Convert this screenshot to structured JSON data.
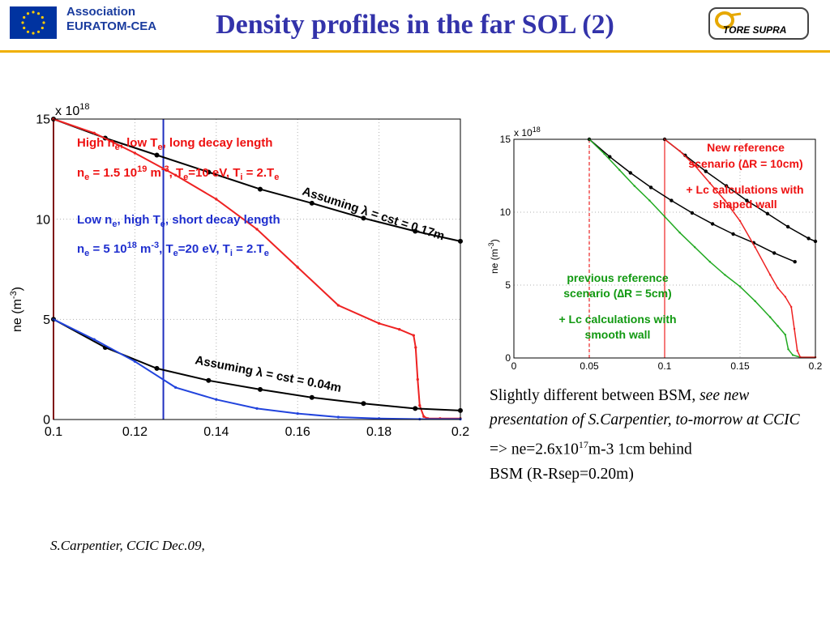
{
  "header": {
    "org_line1": "Association",
    "org_line2": "EURATOM-CEA",
    "title": "Density profiles in the far SOL (2)",
    "logo_text": "TORE SUPRA",
    "logo_colors": {
      "accent": "#f0b000",
      "eu_blue": "#0033a0",
      "eu_star": "#ffcc00"
    },
    "logo_icon": "eu-flag-icon"
  },
  "chart_data": [
    {
      "type": "line",
      "xlim": [
        0.1,
        0.2
      ],
      "ylim": [
        0,
        15
      ],
      "y_multiplier": "x 10",
      "y_multiplier_exp": "18",
      "ylabel": "ne (m",
      "ylabel_exp": "-3",
      "ylabel_close": ")",
      "xticks": [
        "0.1",
        "0.12",
        "0.14",
        "0.16",
        "0.18",
        "0.2"
      ],
      "yticks": [
        "0",
        "5",
        "10",
        "15"
      ],
      "grid": true,
      "vertical_lines": [
        {
          "x": 0.1,
          "color": "#ff2222"
        },
        {
          "x": 0.127,
          "color": "#1f2fbf"
        }
      ],
      "series": [
        {
          "color": "#000000",
          "x": [
            0.1,
            0.1127,
            0.1254,
            0.1381,
            0.1508,
            0.1635,
            0.1762,
            0.1889,
            0.2
          ],
          "y": [
            15,
            14.05,
            13.2,
            12.35,
            11.5,
            10.8,
            10.05,
            9.4,
            8.9
          ]
        },
        {
          "color": "#ee2222",
          "x": [
            0.1,
            0.11,
            0.12,
            0.13,
            0.14,
            0.15,
            0.16,
            0.17,
            0.18,
            0.185,
            0.1885,
            0.189,
            0.1895,
            0.19,
            0.191,
            0.192,
            0.195,
            0.2
          ],
          "y": [
            15,
            14.3,
            13.3,
            12.2,
            11,
            9.5,
            7.6,
            5.7,
            4.8,
            4.5,
            4.2,
            3.6,
            2,
            0.7,
            0.15,
            0.05,
            0.05,
            0.05
          ]
        },
        {
          "color": "#000000",
          "x": [
            0.1,
            0.1127,
            0.1254,
            0.1381,
            0.1508,
            0.1635,
            0.1762,
            0.1889,
            0.2
          ],
          "y": [
            5,
            3.6,
            2.55,
            1.95,
            1.5,
            1.1,
            0.8,
            0.55,
            0.45
          ]
        },
        {
          "color": "#2244dd",
          "x": [
            0.1,
            0.11,
            0.12,
            0.13,
            0.14,
            0.15,
            0.16,
            0.17,
            0.18,
            0.19,
            0.2
          ],
          "y": [
            5,
            4,
            2.9,
            1.6,
            1,
            0.55,
            0.3,
            0.12,
            0.05,
            0.02,
            0.02
          ]
        }
      ],
      "annotations": {
        "high_line1": {
          "text": "High n",
          "sub": "e",
          "tail": ", low T",
          "sub2": "e",
          "tail2": ", long decay length",
          "color": "#ee1111"
        },
        "high_line2": {
          "text": "n",
          "sub": "e",
          "tail": " = 1.5 10",
          "sup": "19",
          "tail2": " m",
          "sup2": "-3",
          "tail3": ", T",
          "sub2": "e",
          "tail4": "=10 eV, T",
          "sub3": "i",
          "tail5": " = 2.T",
          "sub4": "e",
          "color": "#ee1111"
        },
        "low_line1": {
          "text": "Low n",
          "sub": "e",
          "tail": ", high T",
          "sub2": "e",
          "tail2": ", short decay length",
          "color": "#1f2fcf"
        },
        "low_line2": {
          "text": "n",
          "sub": "e",
          "tail": " = 5 10",
          "sup": "18",
          "tail2": " m",
          "sup2": "-3",
          "tail3": ", T",
          "sub2": "e",
          "tail4": "=20 eV, T",
          "sub3": "i",
          "tail5": " = 2.T",
          "sub4": "e",
          "color": "#1f2fcf"
        },
        "assume_long": "Assuming λ = cst = 0.17m",
        "assume_short": "Assuming λ = cst = 0.04m"
      }
    },
    {
      "type": "line",
      "xlim": [
        0,
        0.2
      ],
      "ylim": [
        0,
        15
      ],
      "y_multiplier": "x 10",
      "y_multiplier_exp": "18",
      "ylabel": "ne (m",
      "ylabel_exp": "-3",
      "ylabel_close": ")",
      "xticks": [
        "0",
        "0.05",
        "0.1",
        "0.15",
        "0.2"
      ],
      "yticks": [
        "0",
        "5",
        "10",
        "15"
      ],
      "grid": true,
      "vertical_lines": [
        {
          "x": 0.05,
          "color": "#ee2222"
        },
        {
          "x": 0.1,
          "color": "#ee2222"
        }
      ],
      "series": [
        {
          "color": "#000000",
          "x": [
            0.05,
            0.0636,
            0.0773,
            0.0909,
            0.1045,
            0.1182,
            0.1318,
            0.1455,
            0.1591,
            0.1727,
            0.1864
          ],
          "y": [
            15,
            13.8,
            12.7,
            11.7,
            10.8,
            9.95,
            9.2,
            8.5,
            7.9,
            7.2,
            6.6
          ]
        },
        {
          "color": "#22aa22",
          "x": [
            0.05,
            0.06,
            0.07,
            0.08,
            0.09,
            0.1,
            0.11,
            0.12,
            0.13,
            0.14,
            0.15,
            0.16,
            0.17,
            0.175,
            0.18,
            0.182,
            0.185,
            0.19,
            0.2
          ],
          "y": [
            15,
            14,
            12.9,
            11.8,
            10.8,
            9.7,
            8.6,
            7.6,
            6.6,
            5.7,
            4.9,
            3.9,
            2.8,
            2.2,
            1.6,
            0.6,
            0.2,
            0.05,
            0.05
          ]
        },
        {
          "color": "#000000",
          "x": [
            0.1,
            0.1136,
            0.1273,
            0.1409,
            0.1545,
            0.1682,
            0.1818,
            0.1955,
            0.2
          ],
          "y": [
            15,
            13.9,
            12.8,
            11.8,
            10.8,
            9.9,
            9.0,
            8.2,
            8.0
          ]
        },
        {
          "color": "#ee2222",
          "x": [
            0.1,
            0.11,
            0.12,
            0.13,
            0.14,
            0.15,
            0.16,
            0.17,
            0.175,
            0.18,
            0.184,
            0.186,
            0.188,
            0.19,
            0.2
          ],
          "y": [
            15,
            14.2,
            13.2,
            12.0,
            10.8,
            9.4,
            7.6,
            5.7,
            4.8,
            4.2,
            3.5,
            2.0,
            0.5,
            0.05,
            0.05
          ]
        }
      ],
      "annotations": {
        "new_ref_line1": "New reference",
        "new_ref_line2": "scenario (∆R = 10cm)",
        "new_lc_line1": "+ Lc calculations with",
        "new_lc_line2": "shaped wall",
        "prev_ref_line1": "previous reference",
        "prev_ref_line2": "scenario (∆R = 5cm)",
        "prev_lc_line1": "+ Lc calculations with",
        "prev_lc_line2": "smooth wall",
        "red_color": "#ee1111",
        "green_color": "#119911"
      }
    }
  ],
  "caption": {
    "part1": "Slightly different between BSM, ",
    "part1_italic": "see new presentation of S.Carpentier, to-morrow at CCIC",
    "line2_a": "=> ne=2.6x10",
    "line2_sup": "17",
    "line2_b": "m-3 1cm behind",
    "line3": "BSM (R-Rsep=0.20m)"
  },
  "footer": "S.Carpentier, CCIC Dec.09,"
}
